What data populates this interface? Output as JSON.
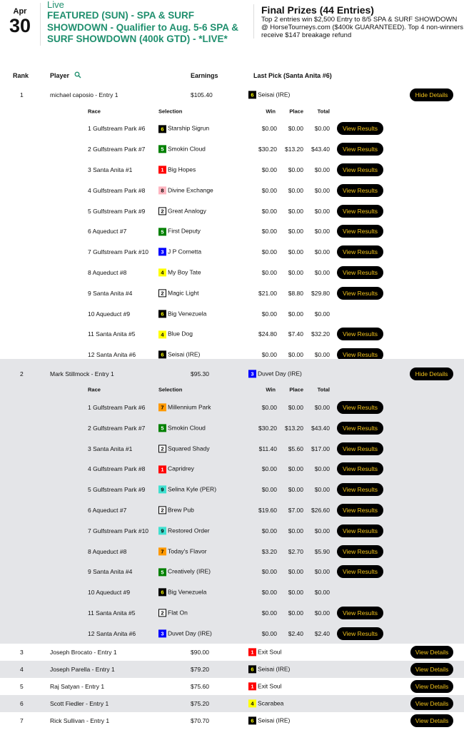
{
  "header": {
    "month": "Apr",
    "day": "30",
    "status": "Live",
    "title": "FEATURED (SUN) - SPA & SURF SHOWDOWN - Qualifier to Aug. 5-6 SPA & SURF SHOWDOWN (400k GTD) - *LIVE*",
    "prizes_title": "Final Prizes (44 Entries)",
    "prizes_text": "Top 2 entries win $2,500 Entry to 8/5 SPA & SURF SHOWDOWN @ HorseTourneys.com ($400k GUARANTEED). Top 4 non-winners receive $147 breakage refund"
  },
  "columns": {
    "rank": "Rank",
    "player": "Player",
    "earnings": "Earnings",
    "last_pick": "Last Pick (Santa Anita #6)"
  },
  "detail_columns": {
    "race": "Race",
    "selection": "Selection",
    "win": "Win",
    "place": "Place",
    "total": "Total"
  },
  "saddle_colors": {
    "1": [
      "#ff0000",
      "#ffffff"
    ],
    "2": [
      "#ffffff",
      "#000000"
    ],
    "3": [
      "#0000ff",
      "#ffffff"
    ],
    "4": [
      "#ffff00",
      "#000000"
    ],
    "5": [
      "#008000",
      "#ffffff"
    ],
    "6": [
      "#000000",
      "#ffff00"
    ],
    "7": [
      "#ff9900",
      "#000000"
    ],
    "8": [
      "#ffb6c1",
      "#000000"
    ],
    "9": [
      "#40e0d0",
      "#000000"
    ]
  },
  "accent": {
    "title_green": "#1f8f6e",
    "button_bg": "#000000",
    "button_text": "#f2c21b",
    "stripe": "#e4e5e8"
  },
  "search_icon": "magnifier-icon",
  "view_results_label": "View Results",
  "entries": [
    {
      "rank": "1",
      "player": "michael caposio - Entry 1",
      "earnings": "$105.40",
      "pick_num": "6",
      "pick": "Seisai (IRE)",
      "button": "Hide Details",
      "details": [
        [
          "1 Gulfstream Park #6",
          "6",
          "Starship Sigrun",
          "$0.00",
          "$0.00",
          "$0.00",
          true
        ],
        [
          "2 Gulfstream Park #7",
          "5",
          "Smokin Cloud",
          "$30.20",
          "$13.20",
          "$43.40",
          true
        ],
        [
          "3 Santa Anita #1",
          "1",
          "Big Hopes",
          "$0.00",
          "$0.00",
          "$0.00",
          true
        ],
        [
          "4 Gulfstream Park #8",
          "8",
          "Divine Exchange",
          "$0.00",
          "$0.00",
          "$0.00",
          true
        ],
        [
          "5 Gulfstream Park #9",
          "2",
          "Great Analogy",
          "$0.00",
          "$0.00",
          "$0.00",
          true
        ],
        [
          "6 Aqueduct #7",
          "5",
          "First Deputy",
          "$0.00",
          "$0.00",
          "$0.00",
          true
        ],
        [
          "7 Gulfstream Park #10",
          "3",
          "J P Cornetta",
          "$0.00",
          "$0.00",
          "$0.00",
          true
        ],
        [
          "8 Aqueduct #8",
          "4",
          "My Boy Tate",
          "$0.00",
          "$0.00",
          "$0.00",
          true
        ],
        [
          "9 Santa Anita #4",
          "2",
          "Magic Light",
          "$21.00",
          "$8.80",
          "$29.80",
          true
        ],
        [
          "10 Aqueduct #9",
          "6",
          "Big Venezuela",
          "$0.00",
          "$0.00",
          "$0.00",
          false
        ],
        [
          "11 Santa Anita #5",
          "4",
          "Blue Dog",
          "$24.80",
          "$7.40",
          "$32.20",
          true
        ],
        [
          "12 Santa Anita #6",
          "6",
          "Seisai (IRE)",
          "$0.00",
          "$0.00",
          "$0.00",
          true
        ]
      ]
    },
    {
      "rank": "2",
      "player": "Mark Stillmock - Entry 1",
      "earnings": "$95.30",
      "pick_num": "3",
      "pick": "Duvet Day (IRE)",
      "button": "Hide Details",
      "details": [
        [
          "1 Gulfstream Park #6",
          "7",
          "Millennium Park",
          "$0.00",
          "$0.00",
          "$0.00",
          true
        ],
        [
          "2 Gulfstream Park #7",
          "5",
          "Smokin Cloud",
          "$30.20",
          "$13.20",
          "$43.40",
          true
        ],
        [
          "3 Santa Anita #1",
          "2",
          "Squared Shady",
          "$11.40",
          "$5.60",
          "$17.00",
          true
        ],
        [
          "4 Gulfstream Park #8",
          "1",
          "Capridrey",
          "$0.00",
          "$0.00",
          "$0.00",
          true
        ],
        [
          "5 Gulfstream Park #9",
          "9",
          "Selina Kyle (PER)",
          "$0.00",
          "$0.00",
          "$0.00",
          true
        ],
        [
          "6 Aqueduct #7",
          "2",
          "Brew Pub",
          "$19.60",
          "$7.00",
          "$26.60",
          true
        ],
        [
          "7 Gulfstream Park #10",
          "9",
          "Restored Order",
          "$0.00",
          "$0.00",
          "$0.00",
          true
        ],
        [
          "8 Aqueduct #8",
          "7",
          "Today's Flavor",
          "$3.20",
          "$2.70",
          "$5.90",
          true
        ],
        [
          "9 Santa Anita #4",
          "5",
          "Creatively (IRE)",
          "$0.00",
          "$0.00",
          "$0.00",
          true
        ],
        [
          "10 Aqueduct #9",
          "6",
          "Big Venezuela",
          "$0.00",
          "$0.00",
          "$0.00",
          false
        ],
        [
          "11 Santa Anita #5",
          "2",
          "Flat On",
          "$0.00",
          "$0.00",
          "$0.00",
          true
        ],
        [
          "12 Santa Anita #6",
          "3",
          "Duvet Day (IRE)",
          "$0.00",
          "$2.40",
          "$2.40",
          true
        ]
      ]
    },
    {
      "rank": "3",
      "player": "Joseph Brocato - Entry 1",
      "earnings": "$90.00",
      "pick_num": "1",
      "pick": "Exit Soul",
      "button": "View Details"
    },
    {
      "rank": "4",
      "player": "Joseph Parella - Entry 1",
      "earnings": "$79.20",
      "pick_num": "6",
      "pick": "Seisai (IRE)",
      "button": "View Details"
    },
    {
      "rank": "5",
      "player": "Raj Satyan - Entry 1",
      "earnings": "$75.60",
      "pick_num": "1",
      "pick": "Exit Soul",
      "button": "View Details"
    },
    {
      "rank": "6",
      "player": "Scott Fiedler - Entry 1",
      "earnings": "$75.20",
      "pick_num": "4",
      "pick": "Scarabea",
      "button": "View Details"
    },
    {
      "rank": "7",
      "player": "Rick Sullivan - Entry 1",
      "earnings": "$70.70",
      "pick_num": "6",
      "pick": "Seisai (IRE)",
      "button": "View Details"
    }
  ]
}
